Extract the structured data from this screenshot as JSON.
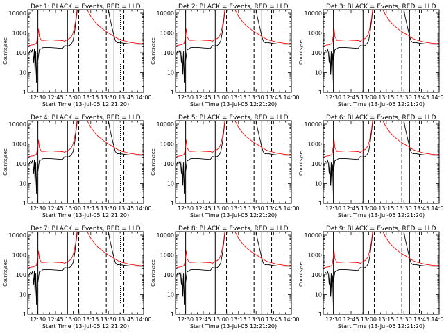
{
  "figure": {
    "xlabel": "Start Time (13-Jul-05 12:21:20)",
    "ylabel": "Counts/sec",
    "legend_suffix": " BLACK = Events, RED = LLD",
    "colors": {
      "events": "#000000",
      "lld": "#ff0000",
      "axis": "#000000",
      "background": "#ffffff"
    }
  },
  "chart_data": {
    "type": "line",
    "panel_titles": [
      "Det 1:",
      "Det 2:",
      "Det 3:",
      "Det 4:",
      "Det 5:",
      "Det 6:",
      "Det 7:",
      "Det 8:",
      "Det 9:"
    ],
    "x_unit": "time of day (hours)",
    "xlim": [
      12.356,
      14.0
    ],
    "ylim": [
      1,
      15000
    ],
    "y_scale": "log",
    "xticks": [
      12.5,
      12.75,
      13.0,
      13.25,
      13.5,
      13.75,
      14.0
    ],
    "xtick_labels": [
      "12:30",
      "12:45",
      "13:00",
      "13:15",
      "13:30",
      "13:45",
      "14:00"
    ],
    "yticks": [
      1,
      10,
      100,
      1000,
      10000
    ],
    "ytick_labels": [
      "1",
      "10",
      "100",
      "1000",
      "10000"
    ],
    "solid_markers": [
      12.5,
      12.92,
      13.58
    ],
    "dashed_markers": [
      13.08,
      13.47,
      13.72
    ],
    "dotted_markers": [
      13.67
    ],
    "series": [
      {
        "name": "Events",
        "color": "#000000",
        "points": [
          [
            12.37,
            95
          ],
          [
            12.39,
            130
          ],
          [
            12.41,
            110
          ],
          [
            12.42,
            140
          ],
          [
            12.43,
            100
          ],
          [
            12.44,
            30
          ],
          [
            12.45,
            160
          ],
          [
            12.46,
            8
          ],
          [
            12.47,
            120
          ],
          [
            12.48,
            3
          ],
          [
            12.49,
            90
          ],
          [
            12.5,
            40
          ],
          [
            12.52,
            140
          ],
          [
            12.55,
            160
          ],
          [
            12.57,
            180
          ],
          [
            12.6,
            185
          ],
          [
            12.65,
            185
          ],
          [
            12.7,
            180
          ],
          [
            12.75,
            175
          ],
          [
            12.8,
            170
          ],
          [
            12.85,
            165
          ],
          [
            12.88,
            230
          ],
          [
            12.91,
            220
          ],
          [
            12.95,
            230
          ],
          [
            12.98,
            300
          ],
          [
            13.0,
            420
          ],
          [
            13.02,
            1100
          ],
          [
            13.035,
            3000
          ],
          [
            13.05,
            8000
          ],
          [
            13.06,
            15000
          ]
        ]
      },
      {
        "name": "LLD",
        "color": "#ff0000",
        "points": [
          [
            12.37,
            230
          ],
          [
            12.4,
            240
          ],
          [
            12.43,
            250
          ],
          [
            12.45,
            260
          ],
          [
            12.48,
            300
          ],
          [
            12.5,
            800
          ],
          [
            12.51,
            1600
          ],
          [
            12.52,
            650
          ],
          [
            12.55,
            420
          ],
          [
            12.6,
            430
          ],
          [
            12.65,
            440
          ],
          [
            12.7,
            450
          ],
          [
            12.75,
            430
          ],
          [
            12.8,
            420
          ],
          [
            12.85,
            410
          ],
          [
            12.88,
            380
          ],
          [
            12.92,
            480
          ],
          [
            12.95,
            520
          ],
          [
            12.98,
            700
          ],
          [
            13.0,
            1000
          ],
          [
            13.02,
            2200
          ],
          [
            13.04,
            5000
          ],
          [
            13.055,
            15000
          ]
        ]
      },
      {
        "name": "Events",
        "color": "#000000",
        "points": [
          [
            13.5,
            15000
          ],
          [
            13.52,
            6000
          ],
          [
            13.55,
            2000
          ],
          [
            13.58,
            700
          ],
          [
            13.6,
            400
          ],
          [
            13.63,
            320
          ],
          [
            13.66,
            330
          ],
          [
            13.7,
            310
          ],
          [
            13.75,
            290
          ],
          [
            13.8,
            280
          ],
          [
            13.85,
            275
          ],
          [
            13.9,
            270
          ],
          [
            13.95,
            268
          ],
          [
            14.0,
            265
          ]
        ]
      },
      {
        "name": "LLD",
        "color": "#ff0000",
        "points": [
          [
            13.2,
            15000
          ],
          [
            13.25,
            7000
          ],
          [
            13.3,
            4000
          ],
          [
            13.35,
            2500
          ],
          [
            13.4,
            1800
          ],
          [
            13.45,
            1300
          ],
          [
            13.5,
            1000
          ],
          [
            13.55,
            800
          ],
          [
            13.6,
            600
          ],
          [
            13.65,
            480
          ],
          [
            13.7,
            420
          ],
          [
            13.75,
            380
          ],
          [
            13.8,
            340
          ],
          [
            13.85,
            320
          ],
          [
            13.9,
            300
          ],
          [
            13.95,
            290
          ],
          [
            14.0,
            285
          ]
        ]
      }
    ]
  }
}
